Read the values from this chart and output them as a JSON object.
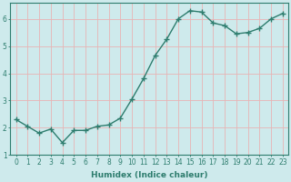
{
  "x": [
    0,
    1,
    2,
    3,
    4,
    5,
    6,
    7,
    8,
    9,
    10,
    11,
    12,
    13,
    14,
    15,
    16,
    17,
    18,
    19,
    20,
    21,
    22,
    23
  ],
  "y": [
    2.3,
    2.05,
    1.8,
    1.95,
    1.45,
    1.9,
    1.9,
    2.05,
    2.1,
    2.35,
    3.05,
    3.8,
    4.65,
    5.25,
    6.0,
    6.3,
    6.25,
    5.85,
    5.75,
    5.45,
    5.5,
    5.65,
    6.0,
    6.2
  ],
  "line_color": "#2e7d6e",
  "marker": "+",
  "marker_size": 4,
  "line_width": 1.0,
  "bg_color": "#ceeaec",
  "grid_color": "#e8b4b4",
  "xlabel": "Humidex (Indice chaleur)",
  "ylim": [
    1.0,
    6.6
  ],
  "yticks": [
    1,
    2,
    3,
    4,
    5,
    6
  ],
  "xlim": [
    -0.5,
    23.5
  ],
  "xticks": [
    0,
    1,
    2,
    3,
    4,
    5,
    6,
    7,
    8,
    9,
    10,
    11,
    12,
    13,
    14,
    15,
    16,
    17,
    18,
    19,
    20,
    21,
    22,
    23
  ],
  "tick_color": "#2e7d6e",
  "label_fontsize": 6.5,
  "tick_fontsize": 5.5
}
